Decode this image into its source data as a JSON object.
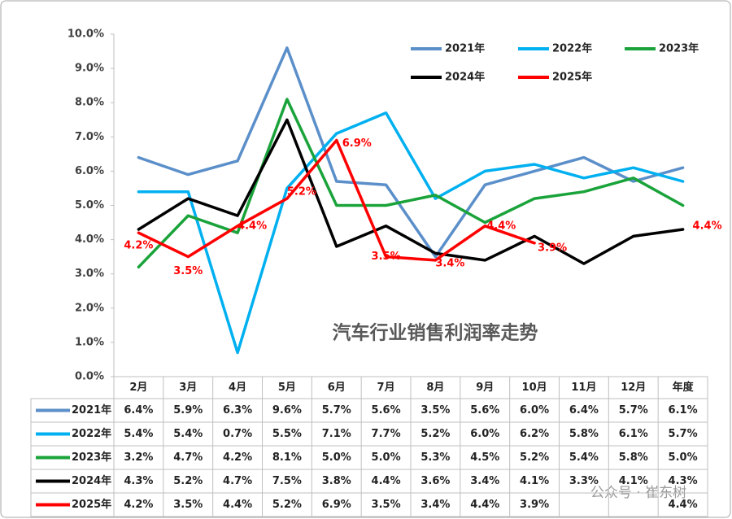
{
  "chart_data": {
    "type": "line",
    "title": "汽车行业销售利润率走势",
    "categories": [
      "2月",
      "3月",
      "4月",
      "5月",
      "6月",
      "7月",
      "8月",
      "9月",
      "10月",
      "11月",
      "12月",
      "年度"
    ],
    "ylim": [
      0,
      10
    ],
    "yticks": [
      {
        "value": 0,
        "label": "0.0%"
      },
      {
        "value": 1,
        "label": "1.0%"
      },
      {
        "value": 2,
        "label": "2.0%"
      },
      {
        "value": 3,
        "label": "3.0%"
      },
      {
        "value": 4,
        "label": "4.0%"
      },
      {
        "value": 5,
        "label": "5.0%"
      },
      {
        "value": 6,
        "label": "6.0%"
      },
      {
        "value": 7,
        "label": "7.0%"
      },
      {
        "value": 8,
        "label": "8.0%"
      },
      {
        "value": 9,
        "label": "9.0%"
      },
      {
        "value": 10,
        "label": "10.0%"
      }
    ],
    "series": [
      {
        "name": "2021年",
        "color": "#5b8fca",
        "values": [
          6.4,
          5.9,
          6.3,
          9.6,
          5.7,
          5.6,
          3.5,
          5.6,
          6.0,
          6.4,
          5.7,
          6.1
        ],
        "value_labels": [
          "6.4%",
          "5.9%",
          "6.3%",
          "9.6%",
          "5.7%",
          "5.6%",
          "3.5%",
          "5.6%",
          "6.0%",
          "6.4%",
          "5.7%",
          "6.1%"
        ]
      },
      {
        "name": "2022年",
        "color": "#00b0f0",
        "values": [
          5.4,
          5.4,
          0.7,
          5.5,
          7.1,
          7.7,
          5.2,
          6.0,
          6.2,
          5.8,
          6.1,
          5.7
        ],
        "value_labels": [
          "5.4%",
          "5.4%",
          "0.7%",
          "5.5%",
          "7.1%",
          "7.7%",
          "5.2%",
          "6.0%",
          "6.2%",
          "5.8%",
          "6.1%",
          "5.7%"
        ]
      },
      {
        "name": "2023年",
        "color": "#1aa33a",
        "values": [
          3.2,
          4.7,
          4.2,
          8.1,
          5.0,
          5.0,
          5.3,
          4.5,
          5.2,
          5.4,
          5.8,
          5.0
        ],
        "value_labels": [
          "3.2%",
          "4.7%",
          "4.2%",
          "8.1%",
          "5.0%",
          "5.0%",
          "5.3%",
          "4.5%",
          "5.2%",
          "5.4%",
          "5.8%",
          "5.0%"
        ]
      },
      {
        "name": "2024年",
        "color": "#000000",
        "values": [
          4.3,
          5.2,
          4.7,
          7.5,
          3.8,
          4.4,
          3.6,
          3.4,
          4.1,
          3.3,
          4.1,
          4.3
        ],
        "value_labels": [
          "4.3%",
          "5.2%",
          "4.7%",
          "7.5%",
          "3.8%",
          "4.4%",
          "3.6%",
          "3.4%",
          "4.1%",
          "3.3%",
          "4.1%",
          "4.3%"
        ]
      },
      {
        "name": "2025年",
        "color": "#ff0000",
        "values": [
          4.2,
          3.5,
          4.4,
          5.2,
          6.9,
          3.5,
          3.4,
          4.4,
          3.9,
          null,
          null,
          4.4
        ],
        "value_labels": [
          "4.2%",
          "3.5%",
          "4.4%",
          "5.2%",
          "6.9%",
          "3.5%",
          "3.4%",
          "4.4%",
          "3.9%",
          null,
          null,
          "4.4%"
        ],
        "show_labels": true
      }
    ],
    "watermark": "公众号 · 崔东树"
  }
}
